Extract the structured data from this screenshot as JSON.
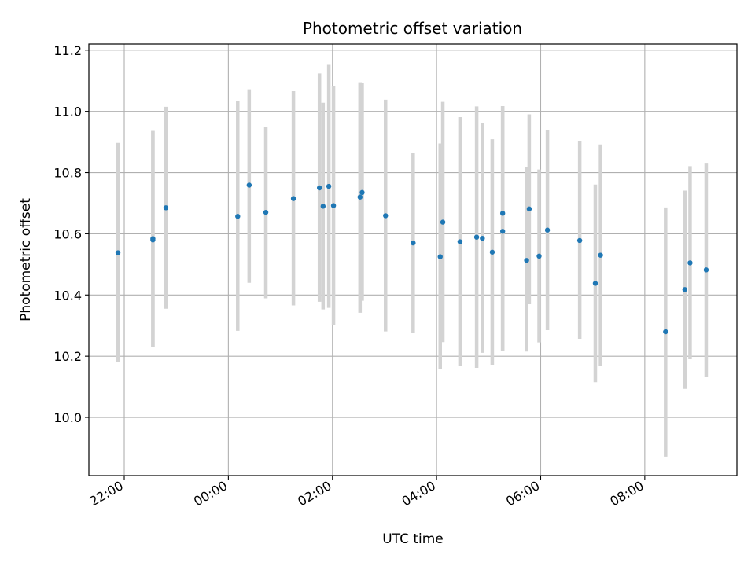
{
  "chart_data": {
    "type": "scatter",
    "title": "Photometric offset variation",
    "xlabel": "UTC time",
    "ylabel": "Photometric offset",
    "x_unit": "hours",
    "x_ticks": [
      {
        "value": -2,
        "label": "22:00"
      },
      {
        "value": 0,
        "label": "00:00"
      },
      {
        "value": 2,
        "label": "02:00"
      },
      {
        "value": 4,
        "label": "04:00"
      },
      {
        "value": 6,
        "label": "06:00"
      },
      {
        "value": 8,
        "label": "08:00"
      }
    ],
    "y_ticks": [
      10.0,
      10.2,
      10.4,
      10.6,
      10.8,
      11.0,
      11.2
    ],
    "xlim": [
      -2.68,
      9.77
    ],
    "ylim": [
      9.81,
      11.22
    ],
    "grid": true,
    "colors": {
      "point": "#1f77b4",
      "errorbar": "#d3d3d3",
      "grid": "#b0b0b0"
    },
    "points": [
      {
        "x": -2.12,
        "y": 10.538,
        "lo": 10.18,
        "hi": 10.897
      },
      {
        "x": -1.45,
        "y": 10.584,
        "lo": 10.23,
        "hi": 10.936
      },
      {
        "x": -1.45,
        "y": 10.58,
        "lo": 10.23,
        "hi": 10.936
      },
      {
        "x": -1.2,
        "y": 10.685,
        "lo": 10.355,
        "hi": 11.015
      },
      {
        "x": 0.18,
        "y": 10.657,
        "lo": 10.283,
        "hi": 11.033
      },
      {
        "x": 0.4,
        "y": 10.759,
        "lo": 10.44,
        "hi": 11.072
      },
      {
        "x": 0.72,
        "y": 10.67,
        "lo": 10.389,
        "hi": 10.95
      },
      {
        "x": 1.25,
        "y": 10.715,
        "lo": 10.366,
        "hi": 11.066
      },
      {
        "x": 1.75,
        "y": 10.75,
        "lo": 10.378,
        "hi": 11.124
      },
      {
        "x": 1.82,
        "y": 10.69,
        "lo": 10.353,
        "hi": 11.028
      },
      {
        "x": 1.93,
        "y": 10.755,
        "lo": 10.358,
        "hi": 11.152
      },
      {
        "x": 2.02,
        "y": 10.692,
        "lo": 10.303,
        "hi": 11.083
      },
      {
        "x": 2.53,
        "y": 10.72,
        "lo": 10.342,
        "hi": 11.095
      },
      {
        "x": 2.57,
        "y": 10.735,
        "lo": 10.381,
        "hi": 11.092
      },
      {
        "x": 3.02,
        "y": 10.659,
        "lo": 10.281,
        "hi": 11.038
      },
      {
        "x": 3.55,
        "y": 10.57,
        "lo": 10.277,
        "hi": 10.865
      },
      {
        "x": 4.07,
        "y": 10.525,
        "lo": 10.157,
        "hi": 10.895
      },
      {
        "x": 4.12,
        "y": 10.638,
        "lo": 10.246,
        "hi": 11.031
      },
      {
        "x": 4.45,
        "y": 10.574,
        "lo": 10.167,
        "hi": 10.981
      },
      {
        "x": 4.77,
        "y": 10.589,
        "lo": 10.162,
        "hi": 11.016
      },
      {
        "x": 4.88,
        "y": 10.585,
        "lo": 10.211,
        "hi": 10.963
      },
      {
        "x": 5.07,
        "y": 10.54,
        "lo": 10.172,
        "hi": 10.909
      },
      {
        "x": 5.27,
        "y": 10.667,
        "lo": 10.216,
        "hi": 11.017
      },
      {
        "x": 5.27,
        "y": 10.608,
        "lo": 10.216,
        "hi": 11.017
      },
      {
        "x": 5.73,
        "y": 10.513,
        "lo": 10.215,
        "hi": 10.819
      },
      {
        "x": 5.78,
        "y": 10.681,
        "lo": 10.37,
        "hi": 10.99
      },
      {
        "x": 5.97,
        "y": 10.527,
        "lo": 10.245,
        "hi": 10.81
      },
      {
        "x": 6.13,
        "y": 10.612,
        "lo": 10.285,
        "hi": 10.94
      },
      {
        "x": 6.75,
        "y": 10.578,
        "lo": 10.257,
        "hi": 10.902
      },
      {
        "x": 7.05,
        "y": 10.438,
        "lo": 10.115,
        "hi": 10.761
      },
      {
        "x": 7.15,
        "y": 10.53,
        "lo": 10.169,
        "hi": 10.892
      },
      {
        "x": 8.4,
        "y": 10.28,
        "lo": 9.872,
        "hi": 10.686
      },
      {
        "x": 8.77,
        "y": 10.418,
        "lo": 10.093,
        "hi": 10.741
      },
      {
        "x": 8.87,
        "y": 10.505,
        "lo": 10.19,
        "hi": 10.821
      },
      {
        "x": 9.18,
        "y": 10.482,
        "lo": 10.132,
        "hi": 10.832
      }
    ]
  }
}
